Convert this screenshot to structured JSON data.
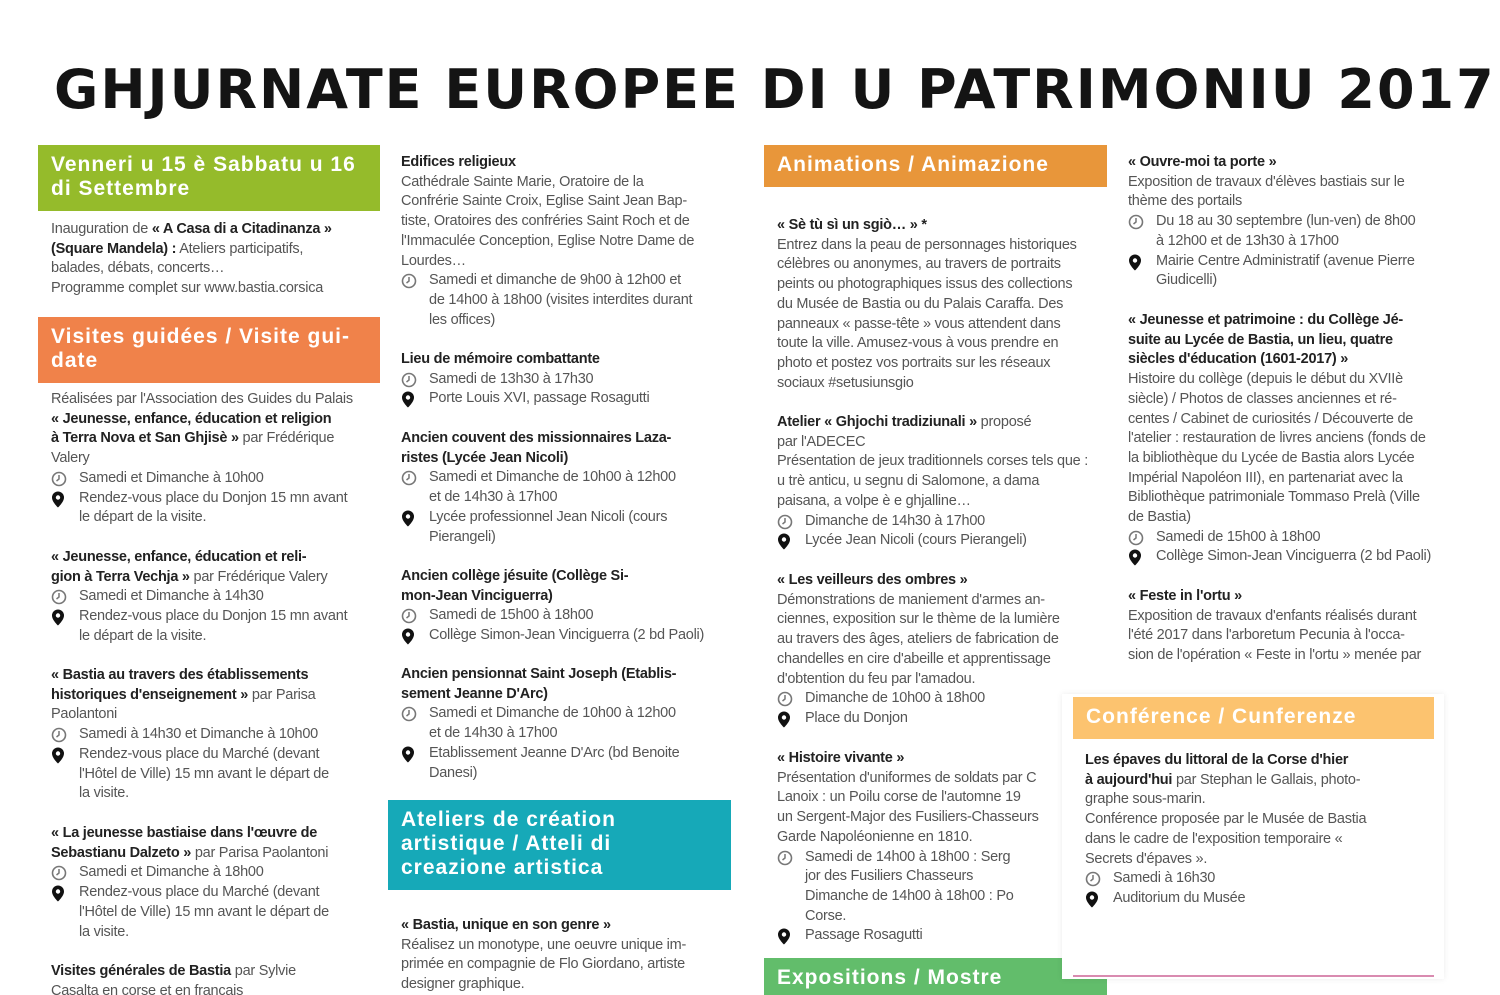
{
  "title": "GHJURNATE EUROPEE DI U PATRIMONIU 2017",
  "colors": {
    "green": "#95bb2b",
    "orange": "#f0824a",
    "amber": "#e8963a",
    "teal": "#16a9b8",
    "green2": "#62bd6b",
    "yellow": "#fcc36f",
    "text": "#555555"
  },
  "columns": [
    {
      "blocks": [
        {
          "type": "header",
          "color": "#95bb2b",
          "text": "Venneri u 15 è Sabbatu u 16\ndi Settembre"
        },
        {
          "type": "item",
          "parts": [
            {
              "bold": false,
              "text": "Inauguration de "
            },
            {
              "bold": true,
              "text": "« A Casa di a Citadinanza »\n(Square Mandela) :"
            },
            {
              "bold": false,
              "text": " Ateliers participatifs,\nbalades, débats, concerts…\nProgramme complet sur www.bastia.corsica"
            }
          ]
        },
        {
          "type": "header",
          "color": "#f0824a",
          "text": "Visites guidées / Visite gui-\ndate"
        },
        {
          "type": "item",
          "parts": [
            {
              "bold": false,
              "text": "Réalisées par l'Association des Guides du Palais\n"
            },
            {
              "bold": true,
              "text": "« Jeunesse, enfance, éducation et religion\nà Terra Nova et San Ghjisè »"
            },
            {
              "bold": false,
              "text": " par Frédérique\nValery"
            }
          ],
          "time": "Samedi et Dimanche à 10h00",
          "place": "Rendez-vous place du Donjon 15 mn avant\nle départ de la visite."
        },
        {
          "type": "item",
          "parts": [
            {
              "bold": true,
              "text": "« Jeunesse, enfance, éducation et reli-\ngion à Terra Vechja »"
            },
            {
              "bold": false,
              "text": " par Frédérique Valery"
            }
          ],
          "time": "Samedi et Dimanche à 14h30",
          "place": "Rendez-vous place du Donjon 15 mn avant\nle départ de la visite."
        },
        {
          "type": "item",
          "parts": [
            {
              "bold": true,
              "text": "« Bastia au travers des établissements\nhistoriques d'enseignement »"
            },
            {
              "bold": false,
              "text": " par Parisa\nPaolantoni"
            }
          ],
          "time": "Samedi à 14h30 et Dimanche à 10h00",
          "place": "Rendez-vous place du Marché (devant\nl'Hôtel de Ville) 15 mn avant le départ de\nla visite."
        },
        {
          "type": "item",
          "parts": [
            {
              "bold": true,
              "text": "« La jeunesse bastiaise dans l'œuvre de\nSebastianu Dalzeto »"
            },
            {
              "bold": false,
              "text": " par Parisa Paolantoni"
            }
          ],
          "time": "Samedi et Dimanche à 18h00",
          "place": "Rendez-vous place du Marché (devant\nl'Hôtel de Ville) 15 mn avant le départ de\nla visite."
        },
        {
          "type": "item",
          "parts": [
            {
              "bold": true,
              "text": "Visites générales de Bastia"
            },
            {
              "bold": false,
              "text": " par Sylvie\nCasalta en corse et en français"
            }
          ]
        }
      ]
    },
    {
      "blocks": [
        {
          "type": "item",
          "parts": [
            {
              "bold": true,
              "text": "Edifices religieux"
            },
            {
              "bold": false,
              "text": "\nCathédrale Sainte Marie, Oratoire de la\nConfrérie Sainte Croix, Eglise Saint Jean Bap-\ntiste, Oratoires des confréries Saint Roch et de\nl'Immaculée Conception, Eglise Notre Dame de\nLourdes…"
            }
          ],
          "time": "Samedi et dimanche de 9h00 à 12h00 et\nde 14h00 à 18h00 (visites interdites durant\nles offices)"
        },
        {
          "type": "item",
          "parts": [
            {
              "bold": true,
              "text": "Lieu de mémoire combattante"
            }
          ],
          "time": "Samedi de 13h30 à 17h30",
          "place": "Porte Louis XVI, passage Rosagutti"
        },
        {
          "type": "item",
          "parts": [
            {
              "bold": true,
              "text": "Ancien couvent des missionnaires Laza-\nristes (Lycée Jean Nicoli)"
            }
          ],
          "time": "Samedi et Dimanche de 10h00 à 12h00\net de 14h30 à 17h00",
          "place": "Lycée professionnel Jean Nicoli (cours\nPierangeli)"
        },
        {
          "type": "item",
          "parts": [
            {
              "bold": true,
              "text": "Ancien collège jésuite (Collège Si-\nmon-Jean Vinciguerra)"
            }
          ],
          "time": "Samedi de 15h00 à 18h00",
          "place": "Collège Simon-Jean Vinciguerra (2 bd Paoli)"
        },
        {
          "type": "item",
          "parts": [
            {
              "bold": true,
              "text": "Ancien pensionnat Saint Joseph (Etablis-\nsement Jeanne D'Arc)"
            }
          ],
          "time": "Samedi et Dimanche de 10h00 à 12h00\net de 14h30 à 17h00",
          "place": "Etablissement Jeanne D'Arc (bd Benoite\nDanesi)"
        },
        {
          "type": "header",
          "color": "#16a9b8",
          "text": "Ateliers de création\nartistique / Atteli di\ncreazione artistica"
        },
        {
          "type": "item",
          "parts": [
            {
              "bold": true,
              "text": "« Bastia, unique en son genre »"
            },
            {
              "bold": false,
              "text": "\nRéalisez un monotype, une oeuvre unique im-\nprimée en compagnie de Flo Giordano, artiste\ndesigner graphique."
            }
          ]
        }
      ]
    },
    {
      "blocks": [
        {
          "type": "header",
          "color": "#e8963a",
          "text": "Animations / Animazione"
        },
        {
          "type": "item",
          "parts": [
            {
              "bold": true,
              "text": "« Sè tù sì un sgiò… » *"
            },
            {
              "bold": false,
              "text": "\nEntrez dans la peau de personnages historiques\ncélèbres ou anonymes, au travers de portraits\npeints ou photographiques issus des collections\ndu Musée de Bastia ou du Palais Caraffa. Des\npanneaux « passe-tête » vous attendent dans\ntoute la ville. Amusez-vous à vous prendre en\nphoto et postez vos portraits sur les réseaux\nsociaux #setusiunsgio"
            }
          ]
        },
        {
          "type": "item",
          "parts": [
            {
              "bold": true,
              "text": "Atelier « Ghjochi tradiziunali »"
            },
            {
              "bold": false,
              "text": " proposé\npar l'ADECEC\nPrésentation de jeux traditionnels corses tels que :\nu trè anticu, u segnu di Salomone, a dama\npaisana, a volpe è e ghjalline…"
            }
          ],
          "time": "Dimanche de 14h30 à 17h00",
          "place": "Lycée Jean Nicoli (cours Pierangeli)"
        },
        {
          "type": "item",
          "parts": [
            {
              "bold": true,
              "text": "« Les veilleurs des ombres »"
            },
            {
              "bold": false,
              "text": "\nDémonstrations de maniement d'armes an-\nciennes, exposition sur le thème de la lumière\nau travers des âges, ateliers de fabrication de\nchandelles en cire d'abeille et apprentissage\nd'obtention du feu par l'amadou."
            }
          ],
          "time": "Dimanche de 10h00 à 18h00",
          "place": "Place du Donjon"
        },
        {
          "type": "item",
          "parts": [
            {
              "bold": true,
              "text": "« Histoire vivante »"
            },
            {
              "bold": false,
              "text": "\nPrésentation d'uniformes de soldats par C\nLanoix : un Poilu corse de l'automne 19\nun Sergent-Major des Fusiliers-Chasseurs\nGarde Napoléonienne en 1810."
            }
          ],
          "time": "Samedi de 14h00 à 18h00 : Serg\njor des Fusiliers Chasseurs\nDimanche de 14h00 à 18h00 : Po\nCorse.",
          "place": "Passage Rosagutti"
        },
        {
          "type": "header",
          "color": "#62bd6b",
          "text": "Expositions / Mostre"
        }
      ]
    },
    {
      "blocks": [
        {
          "type": "item",
          "parts": [
            {
              "bold": true,
              "text": "« Ouvre-moi ta porte »"
            },
            {
              "bold": false,
              "text": "\nExposition de travaux d'élèves bastiais sur le\nthème des portails"
            }
          ],
          "time": "Du 18 au 30 septembre (lun-ven) de 8h00\nà 12h00 et de 13h30 à 17h00",
          "place": "Mairie Centre Administratif (avenue Pierre\nGiudicelli)"
        },
        {
          "type": "item",
          "parts": [
            {
              "bold": true,
              "text": "« Jeunesse et patrimoine : du Collège Jé-\nsuite au Lycée de Bastia, un lieu, quatre\nsiècles d'éducation (1601-2017) »"
            },
            {
              "bold": false,
              "text": "\nHistoire du collège (depuis le début du XVIIè\nsiècle) / Photos de classes anciennes et ré-\ncentes / Cabinet de curiosités / Découverte de\nl'atelier : restauration de livres anciens (fonds de\nla bibliothèque du Lycée de Bastia alors Lycée\nImpérial Napoléon III), en partenariat avec la\nBibliothèque patrimoniale Tommaso Prelà (Ville\nde Bastia)"
            }
          ],
          "time": "Samedi de 15h00 à 18h00",
          "place": "Collège Simon-Jean Vinciguerra (2 bd Paoli)"
        },
        {
          "type": "item",
          "parts": [
            {
              "bold": true,
              "text": "« Feste in l'ortu »"
            },
            {
              "bold": false,
              "text": "\nExposition de travaux d'enfants réalisés durant\nl'été 2017 dans l'arboretum Pecunia à l'occa-\nsion de l'opération « Feste in l'ortu » menée par"
            }
          ]
        }
      ]
    }
  ],
  "conference": {
    "header": {
      "color": "#fcc36f",
      "text": "Conférence / Cunferenze"
    },
    "item": {
      "parts": [
        {
          "bold": true,
          "text": "Les épaves du littoral de la Corse d'hier\nà aujourd'hui"
        },
        {
          "bold": false,
          "text": " par Stephan le Gallais, photo-\ngraphe sous-marin.\nConférence proposée par le Musée de Bastia\ndans le cadre de l'exposition temporaire «\nSecrets d'épaves »."
        }
      ],
      "time": "Samedi à 16h30",
      "place": "Auditorium du Musée"
    }
  }
}
